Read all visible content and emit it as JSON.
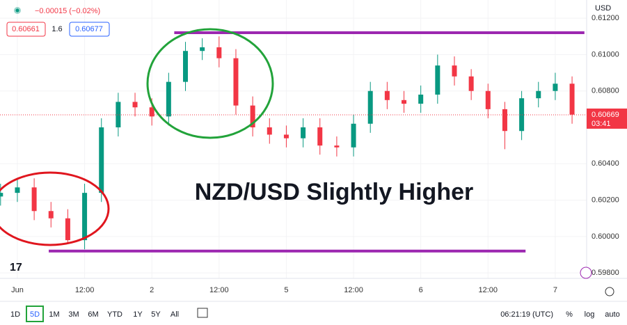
{
  "header": {
    "change": "−0.00015 (−0.02%)",
    "bid": "0.60661",
    "spread": "1.6",
    "ask": "0.60677",
    "currency": "USD"
  },
  "toolbar": {
    "ranges": [
      "1D",
      "5D",
      "1M",
      "3M",
      "6M",
      "YTD",
      "1Y",
      "5Y",
      "All"
    ],
    "active": "5D",
    "clock": "06:21:19 (UTC)",
    "options": [
      "%",
      "log",
      "auto"
    ]
  },
  "chart_data": {
    "type": "candlestick",
    "annotation": "NZD/USD Slightly Higher",
    "x": [
      -3,
      0,
      3,
      6,
      9,
      12,
      15,
      18,
      21,
      24,
      27,
      30,
      33,
      36,
      39,
      42,
      45,
      48,
      51,
      54,
      57,
      60,
      63,
      66,
      69,
      72,
      75,
      78,
      81,
      84,
      87,
      90,
      93,
      96,
      99
    ],
    "open": [
      0.6022,
      0.6024,
      0.6027,
      0.6014,
      0.601,
      0.5998,
      0.6024,
      0.606,
      0.6074,
      0.6071,
      0.6066,
      0.6085,
      0.6102,
      0.6104,
      0.6098,
      0.6072,
      0.606,
      0.6056,
      0.6054,
      0.606,
      0.605,
      0.6049,
      0.6062,
      0.608,
      0.6075,
      0.6073,
      0.6078,
      0.6094,
      0.6088,
      0.608,
      0.607,
      0.6058,
      0.6076,
      0.608,
      0.6084
    ],
    "high": [
      0.6029,
      0.6032,
      0.6032,
      0.6019,
      0.6015,
      0.6029,
      0.6065,
      0.6079,
      0.6079,
      0.6076,
      0.609,
      0.6107,
      0.6109,
      0.611,
      0.6103,
      0.6077,
      0.6065,
      0.6061,
      0.6065,
      0.6065,
      0.6055,
      0.6067,
      0.6085,
      0.6085,
      0.608,
      0.6083,
      0.61,
      0.6099,
      0.6092,
      0.6084,
      0.6074,
      0.608,
      0.6085,
      0.609,
      0.6088
    ],
    "low": [
      0.6017,
      0.6019,
      0.6009,
      0.6005,
      0.5996,
      0.5993,
      0.6019,
      0.6055,
      0.6066,
      0.6061,
      0.6061,
      0.608,
      0.6097,
      0.6093,
      0.6067,
      0.6055,
      0.6051,
      0.6049,
      0.6049,
      0.6045,
      0.6044,
      0.6044,
      0.6057,
      0.607,
      0.6068,
      0.6068,
      0.6073,
      0.6083,
      0.6075,
      0.6065,
      0.6048,
      0.6053,
      0.6071,
      0.6075,
      0.6062
    ],
    "close": [
      0.6024,
      0.6027,
      0.6014,
      0.601,
      0.5998,
      0.6024,
      0.606,
      0.6074,
      0.6071,
      0.6066,
      0.6085,
      0.6102,
      0.6104,
      0.6098,
      0.6072,
      0.606,
      0.6056,
      0.6054,
      0.606,
      0.605,
      0.6049,
      0.6062,
      0.608,
      0.6075,
      0.6073,
      0.6078,
      0.6094,
      0.6088,
      0.608,
      0.607,
      0.6058,
      0.6076,
      0.608,
      0.6084,
      0.6067
    ],
    "up_color": "#089981",
    "down_color": "#f23645",
    "xlim": [
      -3.1,
      101.6
    ],
    "xticks": [
      {
        "value": 0,
        "label": "Jun"
      },
      {
        "value": 12,
        "label": "12:00"
      },
      {
        "value": 24,
        "label": "2"
      },
      {
        "value": 36,
        "label": "12:00"
      },
      {
        "value": 48,
        "label": "5"
      },
      {
        "value": 60,
        "label": "12:00"
      },
      {
        "value": 72,
        "label": "6"
      },
      {
        "value": 84,
        "label": "12:00"
      },
      {
        "value": 96,
        "label": "7"
      }
    ],
    "ylim": [
      0.5977,
      0.613
    ],
    "yticks": [
      {
        "value": 0.598,
        "label": "0.59800"
      },
      {
        "value": 0.6,
        "label": "0.60000"
      },
      {
        "value": 0.602,
        "label": "0.60200"
      },
      {
        "value": 0.604,
        "label": "0.60400"
      },
      {
        "value": 0.608,
        "label": "0.60800"
      },
      {
        "value": 0.61,
        "label": "0.61000"
      },
      {
        "value": 0.612,
        "label": "0.61200"
      }
    ],
    "last_price": 0.60669,
    "countdown": "03:41",
    "levels": [
      {
        "value": 0.6112,
        "x": [
          28,
          101.2
        ],
        "color": "#9c27b0"
      },
      {
        "value": 0.5992,
        "x": [
          5.6,
          90.7
        ],
        "color": "#9c27b0"
      }
    ]
  }
}
